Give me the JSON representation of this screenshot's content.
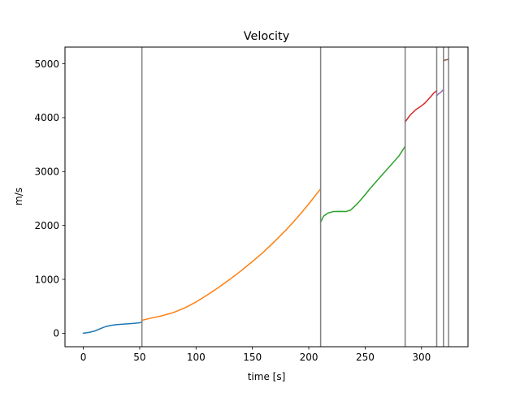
{
  "chart_data": {
    "type": "line",
    "title": "Velocity",
    "xlabel": "time [s]",
    "ylabel": "m/s",
    "xlim": [
      -16.25,
      341.25
    ],
    "ylim": [
      -250,
      5310
    ],
    "xticks": [
      0,
      50,
      100,
      150,
      200,
      250,
      300
    ],
    "yticks": [
      0,
      1000,
      2000,
      3000,
      4000,
      5000
    ],
    "grid": false,
    "legend": "none",
    "vlines": [
      52,
      210.5,
      285.5,
      313.5,
      319.5,
      324
    ],
    "vline_color": "#808080",
    "series": [
      {
        "color": "#1f77b4",
        "x": [
          0,
          5,
          10,
          15,
          20,
          25,
          30,
          35,
          40,
          45,
          50,
          52
        ],
        "y": [
          0,
          15,
          40,
          85,
          125,
          148,
          160,
          168,
          176,
          184,
          195,
          210
        ]
      },
      {
        "color": "#ff7f0e",
        "x": [
          52,
          60,
          70,
          80,
          90,
          100,
          110,
          120,
          130,
          140,
          150,
          160,
          170,
          180,
          190,
          200,
          210.5
        ],
        "y": [
          240,
          280,
          325,
          385,
          470,
          580,
          710,
          850,
          1000,
          1160,
          1330,
          1510,
          1710,
          1920,
          2150,
          2400,
          2680
        ]
      },
      {
        "color": "#2ca02c",
        "x": [
          210.5,
          213,
          217,
          222,
          228,
          233,
          237,
          242,
          248,
          255,
          263,
          272,
          280,
          285.5
        ],
        "y": [
          2060,
          2170,
          2230,
          2258,
          2260,
          2258,
          2285,
          2380,
          2520,
          2700,
          2890,
          3100,
          3290,
          3470
        ]
      },
      {
        "color": "#d62728",
        "x": [
          285.5,
          290,
          295,
          300,
          303,
          306,
          309,
          311,
          313.5
        ],
        "y": [
          3920,
          4050,
          4150,
          4220,
          4270,
          4340,
          4410,
          4460,
          4500
        ]
      },
      {
        "color": "#9467bd",
        "x": [
          313.5,
          315,
          317,
          319.5
        ],
        "y": [
          4410,
          4440,
          4470,
          4520
        ]
      },
      {
        "color": "#8c564b",
        "x": [
          319.5,
          322,
          324
        ],
        "y": [
          5060,
          5075,
          5080
        ]
      }
    ]
  }
}
